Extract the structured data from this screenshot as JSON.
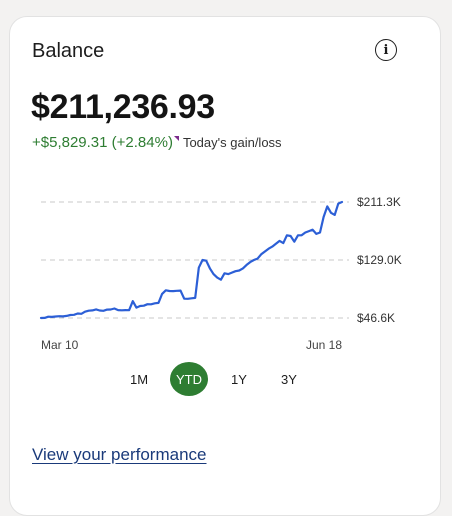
{
  "card": {
    "title": "Balance",
    "info_icon": "info-icon",
    "balance": "$211,236.93",
    "gain": "+$5,829.31 (+2.84%)",
    "gain_label": "Today's gain/loss",
    "link_label": "View your performance"
  },
  "colors": {
    "line": "#2c5fd6",
    "gain": "#2e7d32",
    "active_period": "#2e7d32",
    "grid": "#c9c9c9",
    "link": "#1a3a7a"
  },
  "periods": [
    {
      "label": "1M",
      "active": false
    },
    {
      "label": "YTD",
      "active": true
    },
    {
      "label": "1Y",
      "active": false
    },
    {
      "label": "3Y",
      "active": false
    }
  ],
  "chart_data": {
    "type": "line",
    "y_tick_labels": [
      "$211.3K",
      "$129.0K",
      "$46.6K"
    ],
    "y_ticks": [
      211300,
      129000,
      46600
    ],
    "ylim": [
      46600,
      211300
    ],
    "x_tick_labels": [
      "Mar 10",
      "Jun 18"
    ],
    "grid": true,
    "series": [
      {
        "values": [
          46600,
          46800,
          48500,
          48200,
          48700,
          49200,
          48900,
          49600,
          50800,
          51200,
          53000,
          52600,
          55500,
          57000,
          57400,
          58800,
          57200,
          56800,
          58500,
          58700,
          60100,
          57800,
          57500,
          57800,
          57700,
          70500,
          61300,
          63600,
          64000,
          66200,
          66000,
          67500,
          68100,
          80800,
          86000,
          85000,
          84800,
          85200,
          85500,
          74000,
          73800,
          74500,
          75200,
          118000,
          129000,
          128000,
          117000,
          109000,
          104000,
          101000,
          110000,
          109000,
          111000,
          113000,
          114000,
          117000,
          122000,
          126000,
          129000,
          131000,
          137000,
          141000,
          145000,
          148000,
          152000,
          156000,
          153000,
          164000,
          163000,
          155000,
          164000,
          164000,
          168000,
          170000,
          172000,
          166000,
          168000,
          190000,
          205000,
          196000,
          193000,
          209000,
          211300
        ]
      }
    ]
  }
}
